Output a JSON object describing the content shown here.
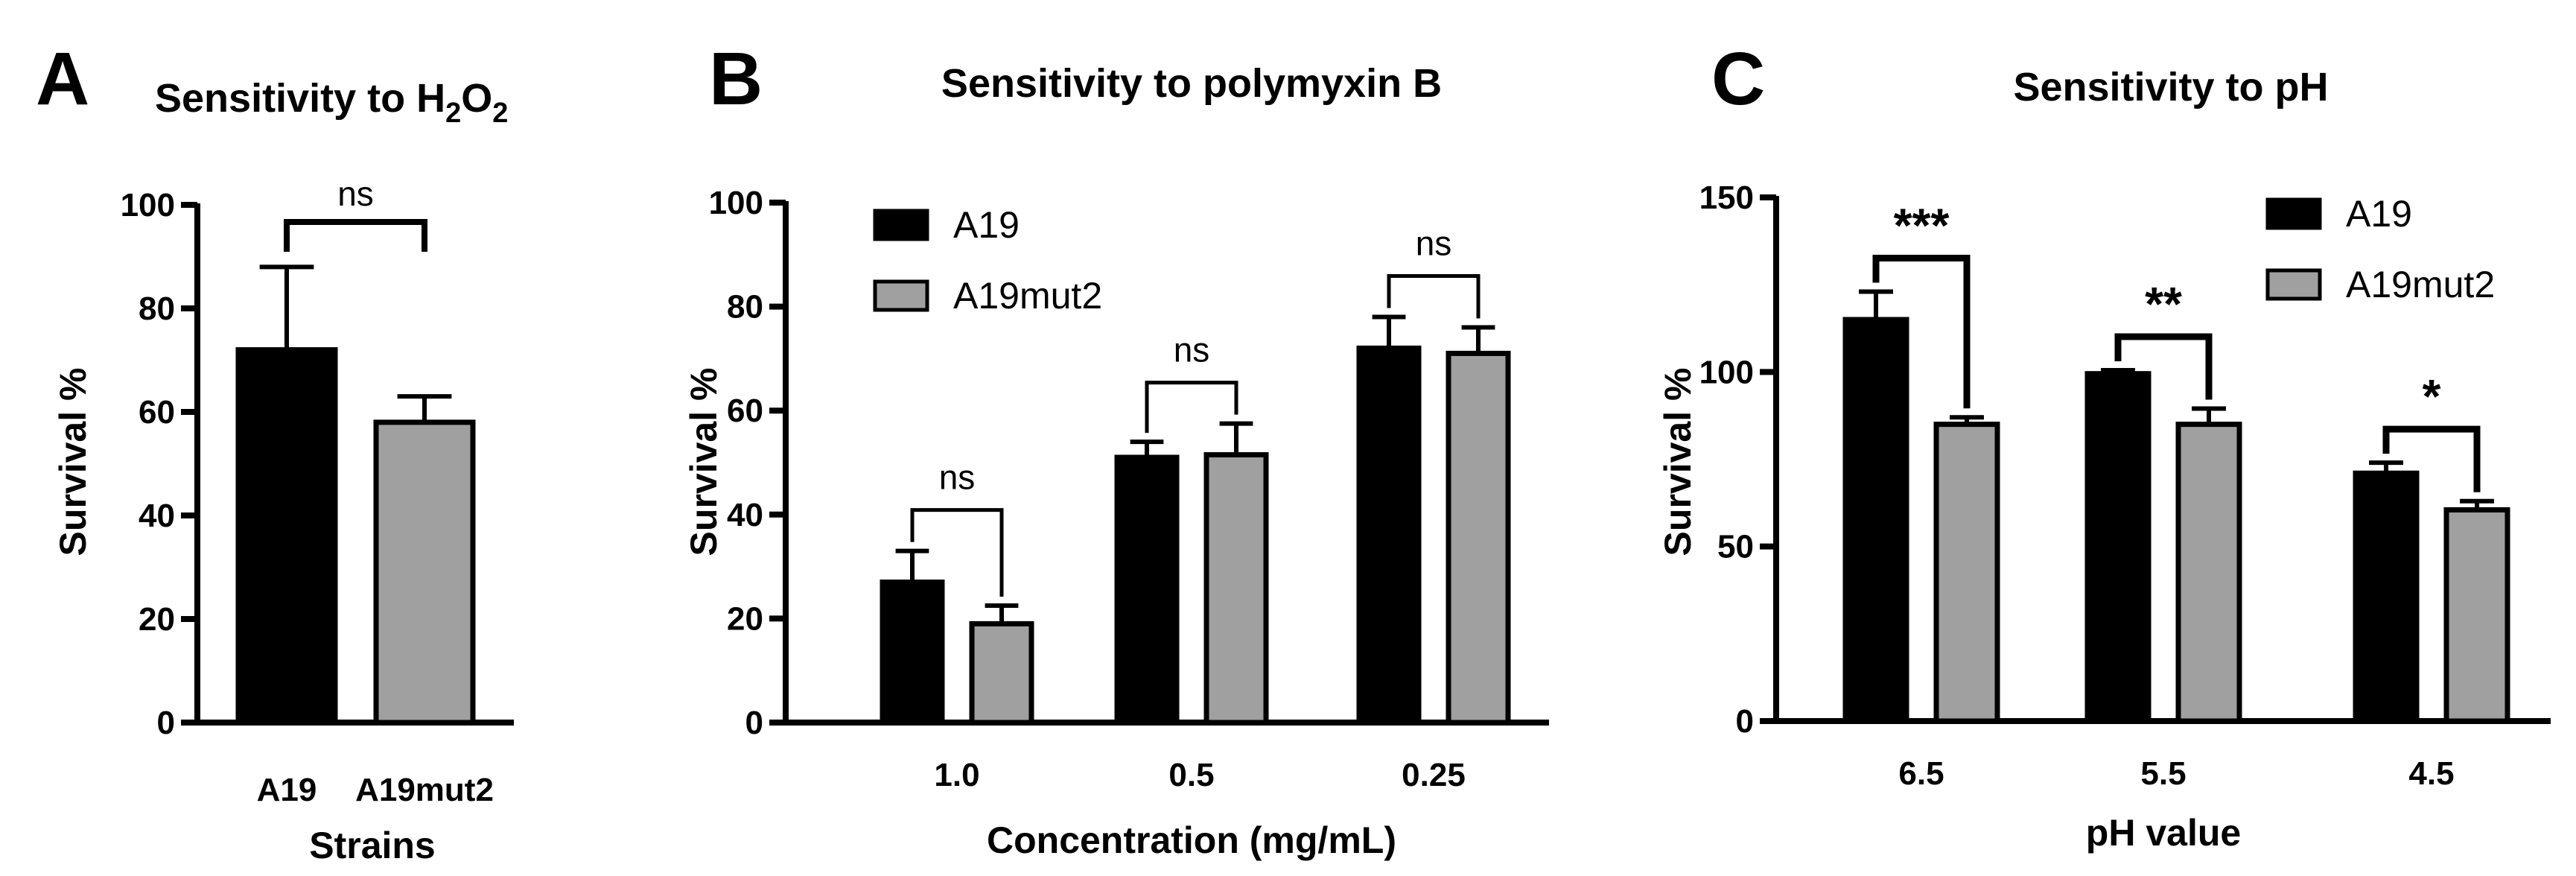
{
  "colors": {
    "A19": "#000000",
    "A19mut2": "#a0a0a0",
    "axis": "#000000"
  },
  "chart_data": [
    {
      "panel": "A",
      "type": "bar",
      "title_main": "Sensitivity to H",
      "title_sub1": "2",
      "title_mid": "O",
      "title_sub2": "2",
      "xlabel": "Strains",
      "ylabel": "Survival %",
      "ylim": [
        0,
        100
      ],
      "yticks": [
        0,
        20,
        40,
        60,
        80,
        100
      ],
      "categories": [
        "A19",
        "A19mut2"
      ],
      "values": [
        72,
        58
      ],
      "errors": [
        16,
        5
      ],
      "significance": [
        {
          "between": [
            0,
            1
          ],
          "label": "ns"
        }
      ]
    },
    {
      "panel": "B",
      "type": "bar",
      "title": "Sensitivity to polymyxin B",
      "xlabel": "Concentration (mg/mL)",
      "ylabel": "Survival %",
      "ylim": [
        0,
        100
      ],
      "yticks": [
        0,
        20,
        40,
        60,
        80,
        100
      ],
      "categories": [
        "1.0",
        "0.5",
        "0.25"
      ],
      "legend_position": "top-left",
      "series": [
        {
          "name": "A19",
          "values": [
            27,
            51,
            72
          ],
          "errors": [
            6,
            3,
            6
          ]
        },
        {
          "name": "A19mut2",
          "values": [
            19,
            51.5,
            71
          ],
          "errors": [
            3.5,
            6,
            5
          ]
        }
      ],
      "significance": [
        {
          "category": 0,
          "label": "ns"
        },
        {
          "category": 1,
          "label": "ns"
        },
        {
          "category": 2,
          "label": "ns"
        }
      ]
    },
    {
      "panel": "C",
      "type": "bar",
      "title": "Sensitivity to pH",
      "xlabel": "pH value",
      "ylabel": "Survival %",
      "ylim": [
        0,
        150
      ],
      "yticks": [
        0,
        50,
        100,
        150
      ],
      "categories": [
        "6.5",
        "5.5",
        "4.5"
      ],
      "legend_position": "top-right",
      "series": [
        {
          "name": "A19",
          "values": [
            115,
            99.5,
            71
          ],
          "errors": [
            8,
            1,
            3
          ]
        },
        {
          "name": "A19mut2",
          "values": [
            85,
            85,
            60.5
          ],
          "errors": [
            2,
            4.5,
            2.5
          ]
        }
      ],
      "significance": [
        {
          "category": 0,
          "label": "***"
        },
        {
          "category": 1,
          "label": "**"
        },
        {
          "category": 2,
          "label": "*"
        }
      ]
    }
  ]
}
